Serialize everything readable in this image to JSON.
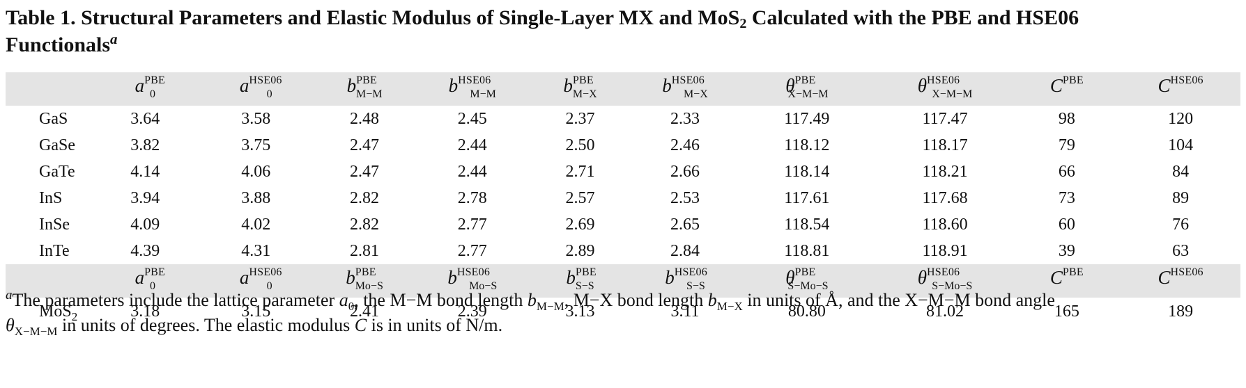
{
  "caption": {
    "prefix": "Table 1. Structural Parameters and Elastic Modulus of Single-Layer MX and MoS",
    "sub": "2",
    "suffix": " Calculated with the PBE and HSE06",
    "line2": "Functionals",
    "fn_mark": "a"
  },
  "header1": [
    {
      "sym": "a",
      "sup": "PBE",
      "sub": "0"
    },
    {
      "sym": "a",
      "sup": "HSE06",
      "sub": "0"
    },
    {
      "sym": "b",
      "sup": "PBE",
      "sub": "M−M"
    },
    {
      "sym": "b",
      "sup": "HSE06",
      "sub": "M−M"
    },
    {
      "sym": "b",
      "sup": "PBE",
      "sub": "M−X"
    },
    {
      "sym": "b",
      "sup": "HSE06",
      "sub": "M−X"
    },
    {
      "sym": "θ",
      "sup": "PBE",
      "sub": "X−M−M"
    },
    {
      "sym": "θ",
      "sup": "HSE06",
      "sub": "X−M−M"
    },
    {
      "sym": "C",
      "sup": "PBE",
      "sub": ""
    },
    {
      "sym": "C",
      "sup": "HSE06",
      "sub": ""
    }
  ],
  "rows": [
    {
      "label": "GaS",
      "values": [
        "3.64",
        "3.58",
        "2.48",
        "2.45",
        "2.37",
        "2.33",
        "117.49",
        "117.47",
        "98",
        "120"
      ]
    },
    {
      "label": "GaSe",
      "values": [
        "3.82",
        "3.75",
        "2.47",
        "2.44",
        "2.50",
        "2.46",
        "118.12",
        "118.17",
        "79",
        "104"
      ]
    },
    {
      "label": "GaTe",
      "values": [
        "4.14",
        "4.06",
        "2.47",
        "2.44",
        "2.71",
        "2.66",
        "118.14",
        "118.21",
        "66",
        "84"
      ]
    },
    {
      "label": "InS",
      "values": [
        "3.94",
        "3.88",
        "2.82",
        "2.78",
        "2.57",
        "2.53",
        "117.61",
        "117.68",
        "73",
        "89"
      ]
    },
    {
      "label": "InSe",
      "values": [
        "4.09",
        "4.02",
        "2.82",
        "2.77",
        "2.69",
        "2.65",
        "118.54",
        "118.60",
        "60",
        "76"
      ]
    },
    {
      "label": "InTe",
      "values": [
        "4.39",
        "4.31",
        "2.81",
        "2.77",
        "2.89",
        "2.84",
        "118.81",
        "118.91",
        "39",
        "63"
      ]
    }
  ],
  "header2": [
    {
      "sym": "a",
      "sup": "PBE",
      "sub": "0"
    },
    {
      "sym": "a",
      "sup": "HSE06",
      "sub": "0"
    },
    {
      "sym": "b",
      "sup": "PBE",
      "sub": "Mo−S"
    },
    {
      "sym": "b",
      "sup": "HSE06",
      "sub": "Mo−S"
    },
    {
      "sym": "b",
      "sup": "PBE",
      "sub": "S−S"
    },
    {
      "sym": "b",
      "sup": "HSE06",
      "sub": "S−S"
    },
    {
      "sym": "θ",
      "sup": "PBE",
      "sub": "S−Mo−S"
    },
    {
      "sym": "θ",
      "sup": "HSE06",
      "sub": "S−Mo−S"
    },
    {
      "sym": "C",
      "sup": "PBE",
      "sub": ""
    },
    {
      "sym": "C",
      "sup": "HSE06",
      "sub": ""
    }
  ],
  "mos2": {
    "label_main": "MoS",
    "label_sub": "2",
    "values": [
      "3.18",
      "3.15",
      "2.41",
      "2.39",
      "3.13",
      "3.11",
      "80.80",
      "81.02",
      "165",
      "189"
    ]
  },
  "footnote": {
    "mark": "a",
    "t1": "The parameters include the lattice parameter ",
    "a": "a",
    "a_sub": "0",
    "t2": ", the M−M bond length ",
    "b1": "b",
    "b1_sub": "M−M",
    "t3": ", M−X bond length ",
    "b2": "b",
    "b2_sub": "M−X",
    "t4": " in units of Å, and the X−M−M bond angle",
    "theta": "θ",
    "theta_sub": "X−M−M",
    "t5": " in units of degrees. The elastic modulus ",
    "c": "C",
    "t6": " is in units of N/m."
  }
}
